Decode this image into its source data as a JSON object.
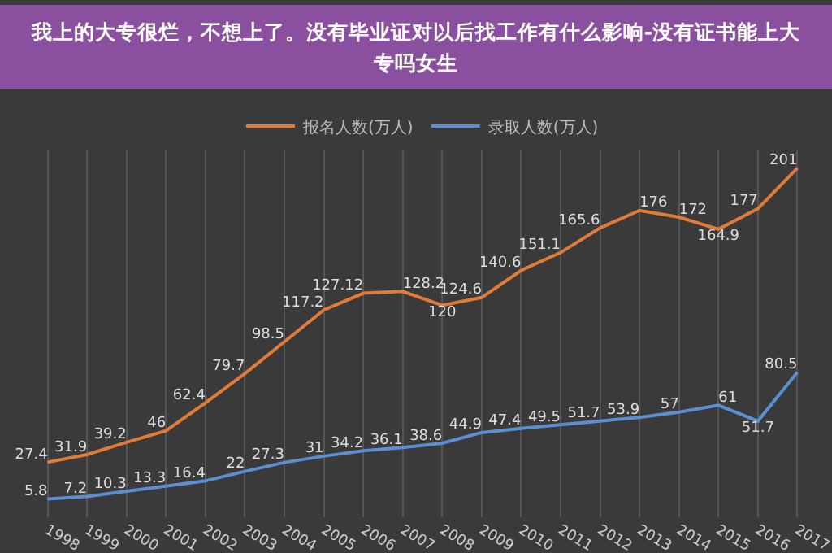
{
  "chart_data": {
    "type": "line",
    "title": "我上的大专很烂，不想上了。没有毕业证对以后找工作有什么影响-没有证书能上大专吗女生",
    "categories": [
      "1998",
      "1999",
      "2000",
      "2001",
      "2002",
      "2003",
      "2004",
      "2005",
      "2006",
      "2007",
      "2008",
      "2009",
      "2010",
      "2011",
      "2012",
      "2013",
      "2014",
      "2015",
      "2016",
      "2017"
    ],
    "series": [
      {
        "name": "报名人数(万人)",
        "color": "#e07b39",
        "values": [
          27.4,
          31.9,
          39.2,
          46,
          62.4,
          79.7,
          98.5,
          117.2,
          127.12,
          128.2,
          120,
          124.6,
          140.6,
          151.1,
          165.6,
          176,
          172,
          164.9,
          177,
          201
        ]
      },
      {
        "name": "录取人数(万人)",
        "color": "#5b8fd0",
        "values": [
          5.8,
          7.2,
          10.3,
          13.3,
          16.4,
          22,
          27.3,
          31,
          34.2,
          36.1,
          38.6,
          44.9,
          47.4,
          49.5,
          51.7,
          53.9,
          57,
          61,
          51.7,
          80.5
        ]
      }
    ],
    "data_labels": true,
    "grid": "x",
    "legend": "top",
    "tick_labels": "x",
    "marker": "none",
    "line_style": "solid"
  }
}
